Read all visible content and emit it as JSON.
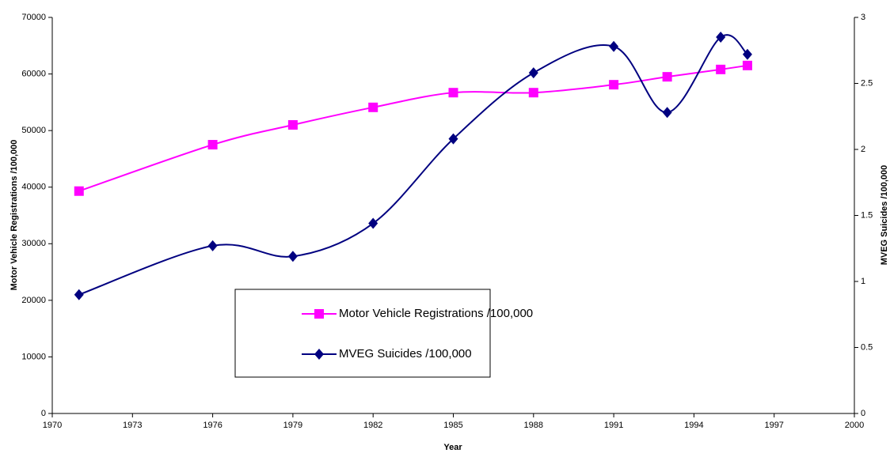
{
  "chart_data": {
    "type": "line",
    "x_label": "Year",
    "y_label": "Motor Vehicle Registrations /100,000",
    "y2_label": "MVEG Suicides /100,000",
    "x": [
      1971,
      1976,
      1979,
      1982,
      1985,
      1988,
      1991,
      1993,
      1995,
      1996
    ],
    "series": [
      {
        "name": "Motor Vehicle Registrations /100,000",
        "color": "#ff00ff",
        "marker": "square",
        "values": [
          39300,
          47500,
          51000,
          54100,
          56700,
          56700,
          58100,
          59500,
          60800,
          61500
        ]
      },
      {
        "name": "MVEG Suicides /100,000",
        "color": "#000080",
        "marker": "diamond",
        "axis": "y2",
        "values": [
          0.9,
          1.27,
          1.19,
          1.44,
          2.08,
          2.58,
          2.78,
          2.28,
          2.85,
          2.72
        ]
      }
    ],
    "xlim": [
      1970,
      2000
    ],
    "xticks": [
      1970,
      1973,
      1976,
      1979,
      1982,
      1985,
      1988,
      1991,
      1994,
      1997,
      2000
    ],
    "ylim": [
      0,
      70000
    ],
    "yticks": [
      0,
      10000,
      20000,
      30000,
      40000,
      50000,
      60000,
      70000
    ],
    "y2lim": [
      0,
      3
    ],
    "y2ticks": [
      0,
      0.5,
      1,
      1.5,
      2,
      2.5,
      3
    ],
    "smooth": true,
    "grid": false
  }
}
